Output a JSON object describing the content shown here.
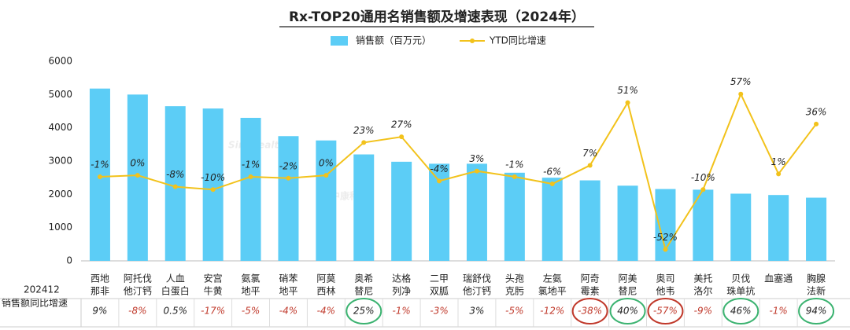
{
  "chart_data": {
    "type": "bar",
    "title": "Rx-TOP20通用名销售额及增速表现（2024年）",
    "categories": [
      [
        "西地",
        "那非"
      ],
      [
        "阿托伐",
        "他汀钙"
      ],
      [
        "人血",
        "白蛋白"
      ],
      [
        "安宫",
        "牛黄"
      ],
      [
        "氨氯",
        "地平"
      ],
      [
        "硝苯",
        "地平"
      ],
      [
        "阿莫",
        "西林"
      ],
      [
        "奥希",
        "替尼"
      ],
      [
        "达格",
        "列净"
      ],
      [
        "二甲",
        "双胍"
      ],
      [
        "瑞舒伐",
        "他汀钙"
      ],
      [
        "头孢",
        "克肟"
      ],
      [
        "左氨",
        "氯地平"
      ],
      [
        "阿奇",
        "霉素"
      ],
      [
        "阿美",
        "替尼"
      ],
      [
        "奥司",
        "他韦"
      ],
      [
        "美托",
        "洛尔"
      ],
      [
        "贝伐",
        "珠单抗"
      ],
      [
        "血塞通"
      ],
      [
        "胸腺",
        "法新"
      ]
    ],
    "series": [
      {
        "name": "销售额（百万元）",
        "type": "bar",
        "color": "#5ccdf6",
        "values": [
          5180,
          5000,
          4650,
          4580,
          4300,
          3750,
          3620,
          3200,
          2980,
          2920,
          2920,
          2650,
          2500,
          2420,
          2260,
          2160,
          2140,
          2020,
          1980,
          1900
        ]
      },
      {
        "name": "YTD同比增速",
        "type": "line",
        "axis": "y2",
        "color": "#f2c21b",
        "values": [
          -1,
          0,
          -8,
          -10,
          -1,
          -2,
          0,
          23,
          27,
          -4,
          3,
          -1,
          -6,
          7,
          51,
          -52,
          -10,
          57,
          1,
          36
        ],
        "value_labels": [
          "-1%",
          "0%",
          "-8%",
          "-10%",
          "-1%",
          "-2%",
          "0%",
          "23%",
          "27%",
          "-4%",
          "3%",
          "-1%",
          "-6%",
          "7%",
          "51%",
          "-52%",
          "-10%",
          "57%",
          "1%",
          "36%"
        ]
      }
    ],
    "ylim": [
      0,
      6000
    ],
    "yticks": [
      0,
      1000,
      2000,
      3000,
      4000,
      5000,
      6000
    ],
    "y2lim": [
      -60,
      80
    ],
    "watermark": [
      "Sinohealth",
      "中康科技"
    ]
  },
  "table": {
    "row_label": [
      "202412",
      "销售额同比增速"
    ],
    "values": [
      9,
      -8,
      0.5,
      -17,
      -5,
      -4,
      -4,
      25,
      -1,
      -3,
      3,
      -5,
      -12,
      -38,
      40,
      -57,
      -9,
      46,
      -1,
      94
    ],
    "value_labels": [
      "9%",
      "-8%",
      "0.5%",
      "-17%",
      "-5%",
      "-4%",
      "-4%",
      "25%",
      "-1%",
      "-3%",
      "3%",
      "-5%",
      "-12%",
      "-38%",
      "40%",
      "-57%",
      "-9%",
      "46%",
      "-1%",
      "94%"
    ],
    "highlight": [
      null,
      null,
      null,
      null,
      null,
      null,
      null,
      "#3cb371",
      null,
      null,
      null,
      null,
      null,
      "#c0392b",
      "#3cb371",
      "#c0392b",
      null,
      "#3cb371",
      null,
      "#3cb371"
    ],
    "negative_color": "#c0392b",
    "positive_color": "#222222"
  }
}
